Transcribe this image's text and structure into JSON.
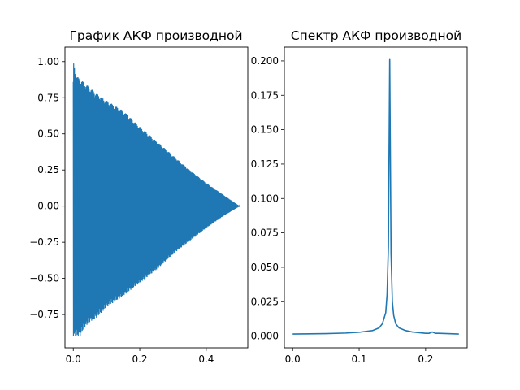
{
  "chart_data": [
    {
      "type": "line",
      "title": "График АКФ производной",
      "xlabel": "",
      "ylabel": "",
      "xlim": [
        -0.025,
        0.525
      ],
      "ylim": [
        -0.98,
        1.1
      ],
      "x_ticks": [
        0.0,
        0.2,
        0.4
      ],
      "x_tick_labels": [
        "0.0",
        "0.2",
        "0.4"
      ],
      "y_ticks": [
        -0.75,
        -0.5,
        -0.25,
        0.0,
        0.25,
        0.5,
        0.75,
        1.0
      ],
      "y_tick_labels": [
        "−0.75",
        "−0.50",
        "−0.25",
        "0.00",
        "0.25",
        "0.50",
        "0.75",
        "1.00"
      ],
      "grid": false,
      "color": "#1f77b4",
      "series": [
        {
          "x": [
            0.0,
            0.01,
            0.02,
            0.03,
            0.05,
            0.07,
            0.1,
            0.15,
            0.2,
            0.25,
            0.3,
            0.35,
            0.4,
            0.45,
            0.5
          ],
          "upper": [
            1.0,
            0.9,
            0.88,
            0.86,
            0.82,
            0.78,
            0.73,
            0.66,
            0.55,
            0.45,
            0.35,
            0.25,
            0.16,
            0.08,
            0.0
          ],
          "lower": [
            -0.9,
            -0.9,
            -0.9,
            -0.85,
            -0.8,
            -0.77,
            -0.7,
            -0.62,
            -0.53,
            -0.44,
            -0.33,
            -0.24,
            -0.15,
            -0.07,
            0.0
          ]
        }
      ]
    },
    {
      "type": "line",
      "title": "Спектр АКФ производной",
      "xlabel": "",
      "ylabel": "",
      "xlim": [
        -0.0125,
        0.2625
      ],
      "ylim": [
        -0.0085,
        0.21
      ],
      "x_ticks": [
        0.0,
        0.1,
        0.2
      ],
      "x_tick_labels": [
        "0.0",
        "0.1",
        "0.2"
      ],
      "y_ticks": [
        0.0,
        0.025,
        0.05,
        0.075,
        0.1,
        0.125,
        0.15,
        0.175,
        0.2
      ],
      "y_tick_labels": [
        "0.000",
        "0.025",
        "0.050",
        "0.075",
        "0.100",
        "0.125",
        "0.150",
        "0.175",
        "0.200"
      ],
      "grid": false,
      "color": "#1f77b4",
      "series": [
        {
          "x": [
            0.0,
            0.05,
            0.08,
            0.1,
            0.12,
            0.13,
            0.135,
            0.14,
            0.142,
            0.144,
            0.146,
            0.148,
            0.15,
            0.152,
            0.155,
            0.16,
            0.17,
            0.18,
            0.2,
            0.205,
            0.21,
            0.215,
            0.22,
            0.25
          ],
          "y": [
            0.0015,
            0.0018,
            0.0022,
            0.0028,
            0.004,
            0.006,
            0.009,
            0.017,
            0.03,
            0.065,
            0.201,
            0.06,
            0.025,
            0.015,
            0.009,
            0.006,
            0.004,
            0.003,
            0.002,
            0.002,
            0.003,
            0.002,
            0.002,
            0.0015
          ]
        }
      ]
    }
  ]
}
